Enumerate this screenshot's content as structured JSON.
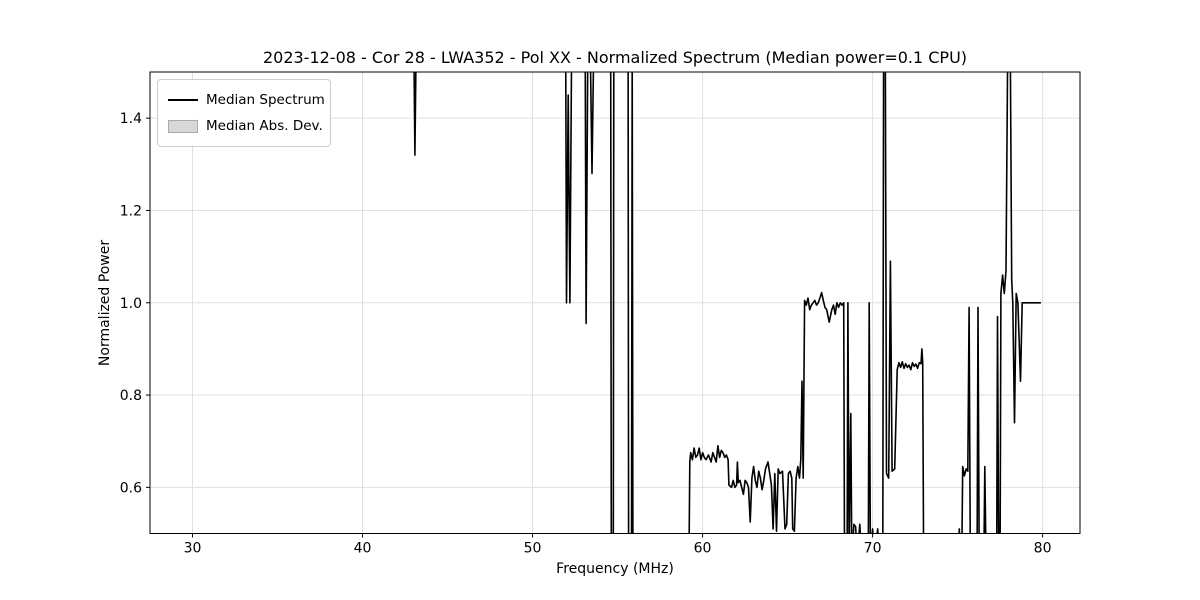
{
  "title": "2023-12-08 - Cor 28 - LWA352 - Pol XX - Normalized Spectrum (Median power=0.1 CPU)",
  "colors": {
    "line": "#000000",
    "grid": "#e0e0e0",
    "spine": "#000000",
    "background": "#ffffff",
    "legend_patch_fill": "#d8d8d8",
    "legend_patch_edge": "#aaaaaa"
  },
  "chart_data": {
    "type": "line",
    "title": "2023-12-08 - Cor 28 - LWA352 - Pol XX - Normalized Spectrum (Median power=0.1 CPU)",
    "xlabel": "Frequency (MHz)",
    "ylabel": "Normalized Power",
    "xlim": [
      27.5,
      82.2
    ],
    "ylim": [
      0.5,
      1.5
    ],
    "xticks": [
      "30",
      "40",
      "50",
      "60",
      "70",
      "80"
    ],
    "yticks": [
      "0.6",
      "0.8",
      "1.0",
      "1.2",
      "1.4"
    ],
    "grid": true,
    "legend": {
      "position": "upper-left",
      "entries": [
        {
          "label": "Median Spectrum",
          "type": "line",
          "color": "#000000"
        },
        {
          "label": "Median Abs. Dev.",
          "type": "patch",
          "color": "#d8d8d8"
        }
      ]
    },
    "series": [
      {
        "name": "Median Spectrum",
        "color": "#000000",
        "linewidth": 1.6,
        "note": "values 1.55 / 0.45 are off-scale (clipped at ylim 1.5 / 0.5)",
        "points": [
          [
            28.0,
            1.55
          ],
          [
            43.02,
            1.55
          ],
          [
            43.08,
            1.32
          ],
          [
            43.15,
            1.55
          ],
          [
            51.95,
            1.55
          ],
          [
            52.0,
            1.0
          ],
          [
            52.1,
            1.45
          ],
          [
            52.2,
            1.0
          ],
          [
            52.3,
            1.55
          ],
          [
            53.1,
            1.55
          ],
          [
            53.15,
            0.955
          ],
          [
            53.25,
            1.55
          ],
          [
            53.4,
            1.55
          ],
          [
            53.5,
            1.28
          ],
          [
            53.6,
            1.55
          ],
          [
            54.6,
            1.55
          ],
          [
            54.63,
            0.45
          ],
          [
            54.75,
            0.45
          ],
          [
            54.78,
            1.55
          ],
          [
            55.62,
            1.55
          ],
          [
            55.65,
            0.45
          ],
          [
            55.82,
            0.45
          ],
          [
            55.86,
            1.55
          ],
          [
            55.9,
            0.45
          ],
          [
            59.2,
            0.45
          ],
          [
            59.25,
            0.655
          ],
          [
            59.3,
            0.675
          ],
          [
            59.4,
            0.66
          ],
          [
            59.5,
            0.685
          ],
          [
            59.6,
            0.665
          ],
          [
            59.7,
            0.67
          ],
          [
            59.8,
            0.685
          ],
          [
            59.9,
            0.66
          ],
          [
            60.0,
            0.675
          ],
          [
            60.1,
            0.665
          ],
          [
            60.2,
            0.66
          ],
          [
            60.35,
            0.67
          ],
          [
            60.5,
            0.655
          ],
          [
            60.6,
            0.675
          ],
          [
            60.7,
            0.665
          ],
          [
            60.8,
            0.655
          ],
          [
            60.9,
            0.69
          ],
          [
            61.0,
            0.665
          ],
          [
            61.1,
            0.68
          ],
          [
            61.2,
            0.675
          ],
          [
            61.3,
            0.665
          ],
          [
            61.4,
            0.67
          ],
          [
            61.5,
            0.66
          ],
          [
            61.55,
            0.605
          ],
          [
            61.7,
            0.6
          ],
          [
            61.8,
            0.615
          ],
          [
            61.9,
            0.6
          ],
          [
            62.0,
            0.605
          ],
          [
            62.05,
            0.655
          ],
          [
            62.1,
            0.61
          ],
          [
            62.2,
            0.615
          ],
          [
            62.3,
            0.6
          ],
          [
            62.4,
            0.585
          ],
          [
            62.5,
            0.615
          ],
          [
            62.6,
            0.61
          ],
          [
            62.7,
            0.6
          ],
          [
            62.8,
            0.525
          ],
          [
            62.9,
            0.62
          ],
          [
            63.0,
            0.645
          ],
          [
            63.1,
            0.615
          ],
          [
            63.2,
            0.6
          ],
          [
            63.3,
            0.635
          ],
          [
            63.4,
            0.62
          ],
          [
            63.5,
            0.595
          ],
          [
            63.6,
            0.615
          ],
          [
            63.7,
            0.64
          ],
          [
            63.85,
            0.655
          ],
          [
            63.95,
            0.63
          ],
          [
            64.05,
            0.605
          ],
          [
            64.15,
            0.51
          ],
          [
            64.25,
            0.63
          ],
          [
            64.35,
            0.505
          ],
          [
            64.45,
            0.64
          ],
          [
            64.55,
            0.63
          ],
          [
            64.7,
            0.635
          ],
          [
            64.85,
            0.51
          ],
          [
            64.95,
            0.52
          ],
          [
            65.05,
            0.63
          ],
          [
            65.15,
            0.635
          ],
          [
            65.25,
            0.62
          ],
          [
            65.3,
            0.51
          ],
          [
            65.4,
            0.505
          ],
          [
            65.5,
            0.62
          ],
          [
            65.6,
            0.645
          ],
          [
            65.7,
            0.62
          ],
          [
            65.78,
            0.66
          ],
          [
            65.85,
            0.83
          ],
          [
            65.92,
            0.62
          ],
          [
            66.0,
            1.005
          ],
          [
            66.1,
            0.995
          ],
          [
            66.2,
            1.01
          ],
          [
            66.3,
            0.985
          ],
          [
            66.4,
            0.995
          ],
          [
            66.5,
            1.0
          ],
          [
            66.6,
            1.005
          ],
          [
            66.7,
            0.995
          ],
          [
            66.8,
            1.0
          ],
          [
            66.9,
            1.01
          ],
          [
            67.0,
            1.022
          ],
          [
            67.1,
            1.005
          ],
          [
            67.2,
            0.99
          ],
          [
            67.3,
            0.985
          ],
          [
            67.45,
            0.958
          ],
          [
            67.6,
            0.985
          ],
          [
            67.7,
            0.995
          ],
          [
            67.8,
            0.975
          ],
          [
            67.9,
            1.0
          ],
          [
            68.0,
            0.99
          ],
          [
            68.1,
            1.0
          ],
          [
            68.2,
            0.995
          ],
          [
            68.3,
            1.0
          ],
          [
            68.35,
            0.45
          ],
          [
            68.5,
            0.45
          ],
          [
            68.55,
            1.0
          ],
          [
            68.62,
            0.45
          ],
          [
            68.72,
            0.76
          ],
          [
            68.78,
            0.45
          ],
          [
            68.9,
            0.52
          ],
          [
            69.0,
            0.515
          ],
          [
            69.1,
            0.45
          ],
          [
            69.25,
            0.52
          ],
          [
            69.35,
            0.45
          ],
          [
            69.75,
            0.45
          ],
          [
            69.8,
            1.0
          ],
          [
            69.87,
            0.45
          ],
          [
            70.0,
            0.51
          ],
          [
            70.1,
            0.45
          ],
          [
            70.3,
            0.51
          ],
          [
            70.4,
            0.45
          ],
          [
            70.6,
            0.45
          ],
          [
            70.65,
            1.55
          ],
          [
            70.75,
            1.55
          ],
          [
            70.82,
            0.63
          ],
          [
            70.95,
            0.62
          ],
          [
            71.05,
            1.09
          ],
          [
            71.15,
            0.635
          ],
          [
            71.3,
            0.64
          ],
          [
            71.45,
            0.855
          ],
          [
            71.55,
            0.87
          ],
          [
            71.65,
            0.86
          ],
          [
            71.75,
            0.872
          ],
          [
            71.85,
            0.858
          ],
          [
            71.95,
            0.868
          ],
          [
            72.05,
            0.86
          ],
          [
            72.15,
            0.865
          ],
          [
            72.25,
            0.855
          ],
          [
            72.35,
            0.87
          ],
          [
            72.45,
            0.862
          ],
          [
            72.55,
            0.867
          ],
          [
            72.65,
            0.858
          ],
          [
            72.75,
            0.87
          ],
          [
            72.85,
            0.868
          ],
          [
            72.9,
            0.9
          ],
          [
            72.95,
            0.87
          ],
          [
            73.0,
            0.45
          ],
          [
            75.05,
            0.45
          ],
          [
            75.1,
            0.51
          ],
          [
            75.15,
            0.45
          ],
          [
            75.25,
            0.45
          ],
          [
            75.3,
            0.645
          ],
          [
            75.4,
            0.625
          ],
          [
            75.5,
            0.64
          ],
          [
            75.6,
            0.635
          ],
          [
            75.68,
            0.99
          ],
          [
            75.75,
            0.45
          ],
          [
            76.15,
            0.45
          ],
          [
            76.2,
            0.99
          ],
          [
            76.27,
            0.45
          ],
          [
            76.55,
            0.45
          ],
          [
            76.6,
            0.645
          ],
          [
            76.67,
            0.45
          ],
          [
            77.3,
            0.45
          ],
          [
            77.35,
            0.97
          ],
          [
            77.42,
            0.45
          ],
          [
            77.5,
            0.45
          ],
          [
            77.55,
            1.02
          ],
          [
            77.65,
            1.06
          ],
          [
            77.75,
            1.02
          ],
          [
            77.85,
            1.07
          ],
          [
            77.95,
            1.55
          ],
          [
            78.1,
            1.55
          ],
          [
            78.18,
            1.05
          ],
          [
            78.25,
            1.0
          ],
          [
            78.35,
            0.74
          ],
          [
            78.45,
            1.02
          ],
          [
            78.55,
            1.0
          ],
          [
            78.7,
            0.83
          ],
          [
            78.8,
            1.0
          ],
          [
            79.2,
            1.0
          ],
          [
            79.9,
            1.0
          ]
        ]
      }
    ]
  }
}
